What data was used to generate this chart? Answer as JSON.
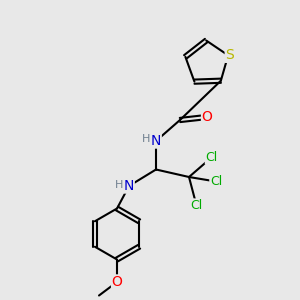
{
  "background_color": "#e8e8e8",
  "atom_colors": {
    "S": "#b8b800",
    "N": "#0000cd",
    "O": "#ff0000",
    "Cl": "#00aa00",
    "C": "#000000",
    "H": "#708090"
  },
  "bond_color": "#000000",
  "bond_lw": 1.5,
  "figsize": [
    3.0,
    3.0
  ],
  "dpi": 100,
  "xlim": [
    0,
    10
  ],
  "ylim": [
    0,
    10
  ]
}
